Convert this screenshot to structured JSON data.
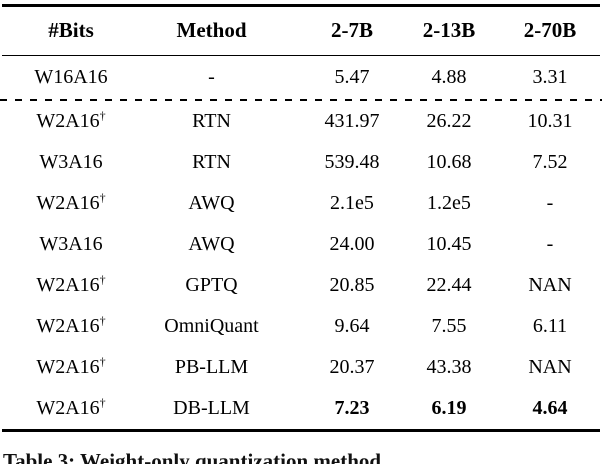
{
  "page": {
    "background": "#ffffff",
    "text_color": "#000000"
  },
  "table": {
    "headers": [
      "#Bits",
      "Method",
      "2-7B",
      "2-13B",
      "2-70B"
    ],
    "dagger_symbol": "†",
    "sections": [
      {
        "name": "fp16-baseline",
        "rows": [
          {
            "bits": "W16A16",
            "dagger": false,
            "method": "-",
            "values": [
              "5.47",
              "4.88",
              "3.31"
            ],
            "bold_values": false
          }
        ]
      },
      {
        "name": "quantized-methods",
        "rows": [
          {
            "bits": "W2A16",
            "dagger": true,
            "method": "RTN",
            "values": [
              "431.97",
              "26.22",
              "10.31"
            ],
            "bold_values": false
          },
          {
            "bits": "W3A16",
            "dagger": false,
            "method": "RTN",
            "values": [
              "539.48",
              "10.68",
              "7.52"
            ],
            "bold_values": false
          },
          {
            "bits": "W2A16",
            "dagger": true,
            "method": "AWQ",
            "values": [
              "2.1e5",
              "1.2e5",
              "-"
            ],
            "bold_values": false
          },
          {
            "bits": "W3A16",
            "dagger": false,
            "method": "AWQ",
            "values": [
              "24.00",
              "10.45",
              "-"
            ],
            "bold_values": false
          },
          {
            "bits": "W2A16",
            "dagger": true,
            "method": "GPTQ",
            "values": [
              "20.85",
              "22.44",
              "NAN"
            ],
            "bold_values": false
          },
          {
            "bits": "W2A16",
            "dagger": true,
            "method": "OmniQuant",
            "values": [
              "9.64",
              "7.55",
              "6.11"
            ],
            "bold_values": false
          },
          {
            "bits": "W2A16",
            "dagger": true,
            "method": "PB-LLM",
            "values": [
              "20.37",
              "43.38",
              "NAN"
            ],
            "bold_values": false
          },
          {
            "bits": "W2A16",
            "dagger": true,
            "method": "DB-LLM",
            "values": [
              "7.23",
              "6.19",
              "4.64"
            ],
            "bold_values": true
          }
        ]
      }
    ]
  },
  "caption": {
    "text": "Table 3: Weight-only quantization method"
  }
}
